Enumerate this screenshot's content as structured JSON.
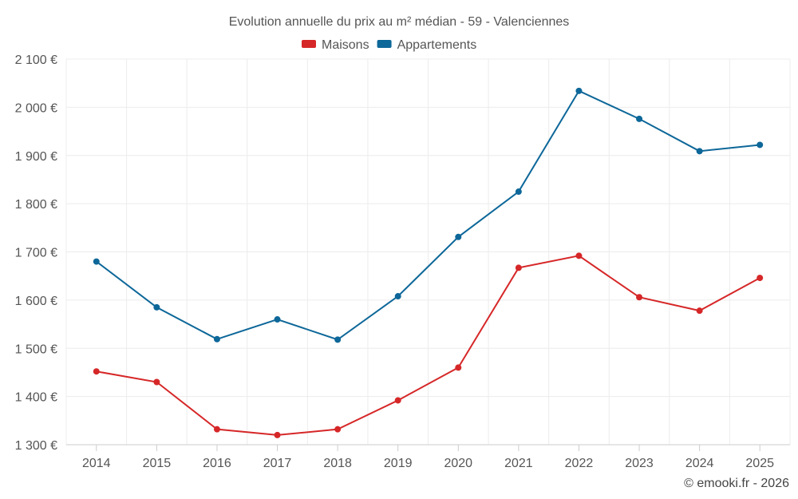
{
  "chart_data": {
    "type": "line",
    "title": "Evolution annuelle du prix au m² médian - 59 - Valenciennes",
    "categories": [
      "2014",
      "2015",
      "2016",
      "2017",
      "2018",
      "2019",
      "2020",
      "2021",
      "2022",
      "2023",
      "2024",
      "2025"
    ],
    "series": [
      {
        "name": "Maisons",
        "color": "#d62728",
        "values": [
          1452,
          1430,
          1332,
          1320,
          1332,
          1392,
          1460,
          1667,
          1692,
          1606,
          1578,
          1646
        ]
      },
      {
        "name": "Appartements",
        "color": "#0d6799",
        "values": [
          1680,
          1585,
          1519,
          1560,
          1518,
          1608,
          1731,
          1825,
          2034,
          1976,
          1909,
          1922
        ]
      }
    ],
    "y_tick_values": [
      1300,
      1400,
      1500,
      1600,
      1700,
      1800,
      1900,
      2000,
      2100
    ],
    "y_tick_labels": [
      "1 300 €",
      "1 400 €",
      "1 500 €",
      "1 600 €",
      "1 700 €",
      "1 800 €",
      "1 900 €",
      "2 000 €",
      "2 100 €"
    ],
    "ylim": [
      1300,
      2100
    ],
    "xlabel": "",
    "ylabel": "",
    "legend_position": "top-center",
    "grid": true
  },
  "credit": "© emooki.fr - 2026"
}
